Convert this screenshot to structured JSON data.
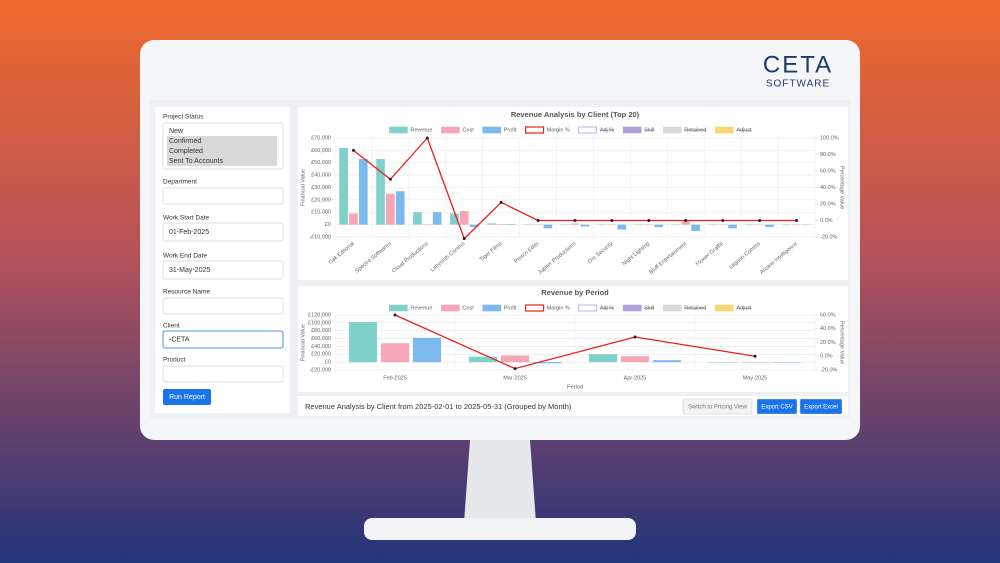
{
  "brand": {
    "name": "CETA",
    "tagline": "SOFTWARE"
  },
  "sidebar": {
    "fields": [
      {
        "label": "Project Status",
        "options": [
          "New",
          "Confirmed",
          "Completed",
          "Sent To Accounts"
        ],
        "selected": [
          false,
          true,
          true,
          true
        ]
      },
      {
        "label": "Department"
      },
      {
        "label": "Work Start Date",
        "value": "01-Feb-2025"
      },
      {
        "label": "Work End Date",
        "value": "31-May-2025"
      },
      {
        "label": "Resource Name"
      },
      {
        "label": "Client",
        "value": "-CETA",
        "focused": true
      },
      {
        "label": "Product"
      }
    ],
    "button": "Run Report"
  },
  "chart_data": [
    {
      "type": "bar",
      "title": "Revenue Analysis by Client (Top 20)",
      "categories": [
        "Oak Editorial",
        "Spectre Softwares",
        "Cloud Productions",
        "Labyrinth Comms",
        "Tiger Films",
        "Proton Edits",
        "Jupiter Productions",
        "Orc Security",
        "Night Lighting",
        "Bluff Entertainment",
        "Flower Graffiti",
        "Lagoon Comms",
        "Arcane Intelligence"
      ],
      "series": [
        {
          "name": "Revenue",
          "color": "#80d0cb",
          "values": [
            62000,
            53000,
            10000,
            9000,
            1000,
            0,
            0,
            0,
            0,
            0,
            0,
            0,
            0
          ]
        },
        {
          "name": "Cost",
          "color": "#f6a5b7",
          "values": [
            9000,
            25000,
            0,
            11000,
            500,
            0,
            1000,
            0,
            0,
            2500,
            0,
            0,
            0
          ]
        },
        {
          "name": "Profit",
          "color": "#7cb9ec",
          "values": [
            53000,
            27000,
            10000,
            -2000,
            500,
            -3000,
            -1500,
            -4000,
            -2000,
            -5000,
            -3000,
            -2000,
            0
          ]
        },
        {
          "name": "Margin %",
          "color": "#e8211c",
          "type": "line",
          "axis": "y2",
          "values": [
            85,
            50,
            100,
            -22,
            22,
            0,
            0,
            0,
            0,
            0,
            0,
            0,
            0
          ]
        }
      ],
      "hidden_legend": [
        {
          "name": "Adj %",
          "color": "#9b7be0"
        },
        {
          "name": "Skill",
          "color": "#b39ddb"
        },
        {
          "name": "Retained",
          "color": "#d9d9d9"
        },
        {
          "name": "Adjust",
          "color": "#f7d774"
        }
      ],
      "ylabel": "Financial Value",
      "y2label": "Percentage Value",
      "ylim": [
        -10000,
        70000
      ],
      "yticks": [
        {
          "value": -10000,
          "label": "-£10,000"
        },
        {
          "value": 0,
          "label": "£0"
        },
        {
          "value": 10000,
          "label": "£10,000"
        },
        {
          "value": 20000,
          "label": "£20,000"
        },
        {
          "value": 30000,
          "label": "£30,000"
        },
        {
          "value": 40000,
          "label": "£40,000"
        },
        {
          "value": 50000,
          "label": "£50,000"
        },
        {
          "value": 60000,
          "label": "£60,000"
        },
        {
          "value": 70000,
          "label": "£70,000"
        }
      ],
      "y2lim": [
        -20,
        100
      ],
      "y2ticks": [
        {
          "value": -20,
          "label": "-20.0%"
        },
        {
          "value": 0,
          "label": "0.0%"
        },
        {
          "value": 20,
          "label": "20.0%"
        },
        {
          "value": 40,
          "label": "40.0%"
        },
        {
          "value": 60,
          "label": "60.0%"
        },
        {
          "value": 80,
          "label": "80.0%"
        },
        {
          "value": 100,
          "label": "100.0%"
        }
      ],
      "grid": true
    },
    {
      "type": "bar",
      "title": "Revenue by Period",
      "categories": [
        "Feb-2025",
        "Mar-2025",
        "Apr-2025",
        "May-2025"
      ],
      "series": [
        {
          "name": "Revenue",
          "color": "#80d0cb",
          "values": [
            102000,
            14000,
            20000,
            0
          ]
        },
        {
          "name": "Cost",
          "color": "#f6a5b7",
          "values": [
            48000,
            17000,
            15000,
            0
          ]
        },
        {
          "name": "Profit",
          "color": "#7cb9ec",
          "values": [
            62000,
            -3000,
            5000,
            0
          ]
        },
        {
          "name": "Margin %",
          "color": "#e8211c",
          "type": "line",
          "axis": "y2",
          "values": [
            60,
            -18,
            28,
            0
          ]
        }
      ],
      "hidden_legend": [
        {
          "name": "Adj %",
          "color": "#9b7be0"
        },
        {
          "name": "Skill",
          "color": "#b39ddb"
        },
        {
          "name": "Retained",
          "color": "#d9d9d9"
        },
        {
          "name": "Adjust",
          "color": "#f7d774"
        }
      ],
      "xlabel": "Period",
      "ylabel": "Financial Value",
      "y2label": "Percentage Value",
      "ylim": [
        -20000,
        120000
      ],
      "yticks": [
        {
          "value": -20000,
          "label": "-£20,000"
        },
        {
          "value": 0,
          "label": "£0"
        },
        {
          "value": 20000,
          "label": "£20,000"
        },
        {
          "value": 40000,
          "label": "£40,000"
        },
        {
          "value": 60000,
          "label": "£60,000"
        },
        {
          "value": 80000,
          "label": "£80,000"
        },
        {
          "value": 100000,
          "label": "£100,000"
        },
        {
          "value": 120000,
          "label": "£120,000"
        }
      ],
      "y2lim": [
        -20,
        60
      ],
      "y2ticks": [
        {
          "value": -20,
          "label": "-20.0%"
        },
        {
          "value": 0,
          "label": "0.0%"
        },
        {
          "value": 20,
          "label": "20.0%"
        },
        {
          "value": 40,
          "label": "40.0%"
        },
        {
          "value": 60,
          "label": "60.0%"
        }
      ],
      "grid": true
    }
  ],
  "footer": {
    "summary": "Revenue Analysis by Client from 2025-02-01 to 2025-05-31 (Grouped by Month)",
    "buttons": [
      "Switch to Pricing View",
      "Export CSV",
      "Export Excel"
    ]
  }
}
